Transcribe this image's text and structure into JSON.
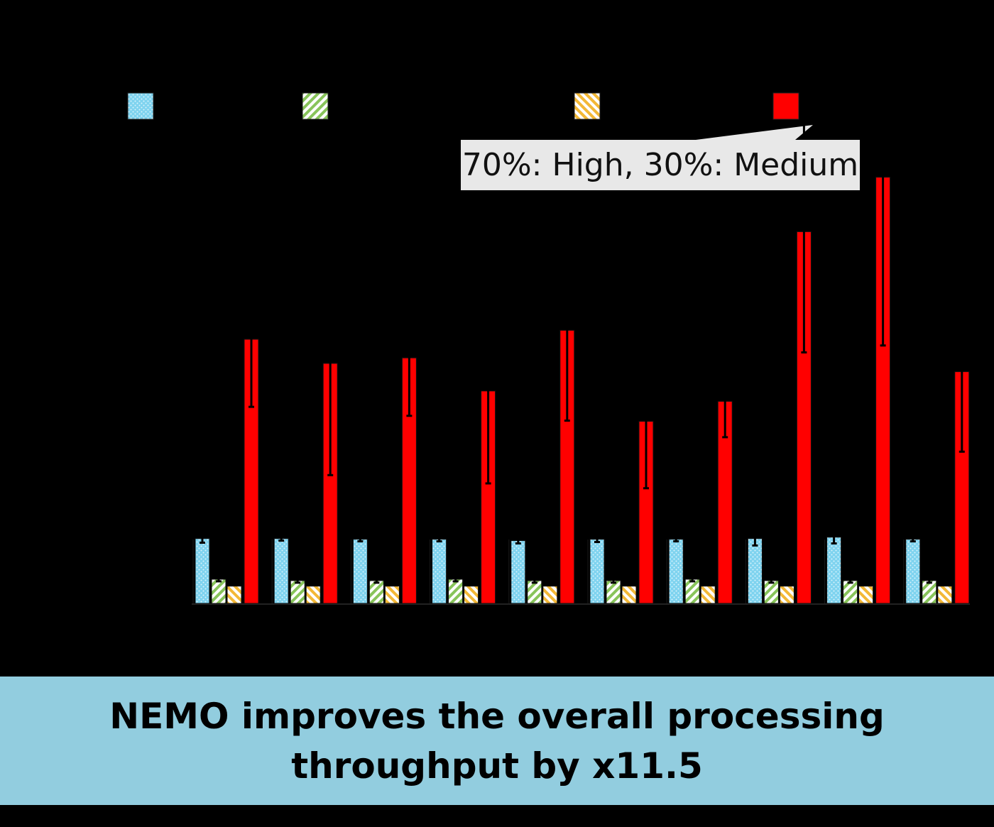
{
  "chart_data": {
    "type": "bar",
    "title": "",
    "xlabel": "",
    "ylabel": "",
    "categories": [
      "",
      "",
      "",
      "",
      "",
      "",
      "",
      "",
      "",
      ""
    ],
    "series": [
      {
        "values": [
          9.4,
          9.4,
          9.3,
          9.3,
          9.1,
          9.3,
          9.3,
          9.4,
          9.6,
          9.3
        ],
        "err": [
          0.6,
          0.3,
          0.3,
          0.3,
          0.4,
          0.4,
          0.3,
          1.0,
          0.9,
          0.3
        ],
        "color": "#7fd3ef",
        "pattern": "dots"
      },
      {
        "values": [
          3.5,
          3.3,
          3.3,
          3.5,
          3.3,
          3.3,
          3.5,
          3.3,
          3.3,
          3.3
        ],
        "err": [
          0.3,
          0.3,
          0.3,
          0.3,
          0.3,
          0.3,
          0.3,
          0.3,
          0.3,
          0.3
        ],
        "color": "#88c45a",
        "pattern": "diagonal"
      },
      {
        "values": [
          2.5,
          2.5,
          2.5,
          2.5,
          2.5,
          2.5,
          2.5,
          2.5,
          2.5,
          2.5
        ],
        "err": [
          0,
          0,
          0,
          0,
          0,
          0,
          0,
          0,
          0,
          0
        ],
        "color": "#f3b836",
        "pattern": "diagonal"
      },
      {
        "values": [
          38.3,
          34.8,
          35.6,
          30.8,
          39.6,
          26.4,
          29.3,
          53.9,
          61.8,
          33.6
        ],
        "err": [
          9.8,
          16.2,
          8.4,
          13.4,
          13.1,
          9.7,
          5.2,
          17.5,
          24.4,
          11.6
        ],
        "color": "#ff0000",
        "pattern": "solid"
      }
    ],
    "ylim": [
      0,
      70
    ],
    "grid": false,
    "legend_position": "top"
  },
  "callout": {
    "text": "70%: High, 30%: Medium"
  },
  "banner": {
    "line1": "NEMO improves the overall processing",
    "line2": "throughput by x11.5"
  },
  "colors": {
    "background": "#000000",
    "banner": "#92cddf",
    "callout": "#e8e8e8"
  }
}
